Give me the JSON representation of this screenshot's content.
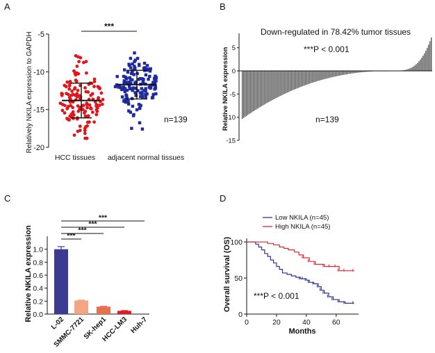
{
  "panels": {
    "A": "A",
    "B": "B",
    "C": "C",
    "D": "D"
  },
  "chart_data": [
    {
      "id": "A",
      "type": "scatter",
      "ylabel": "Relatively NKILA expression to GAPDH",
      "categories": [
        "HCC tissues",
        "adjacent normal tissues"
      ],
      "ylim": [
        -20,
        -5
      ],
      "yticks": [
        -5,
        -10,
        -15,
        -20
      ],
      "means": [
        -13.8,
        -11.7
      ],
      "sd": [
        2.3,
        1.9
      ],
      "n_points": 139,
      "colors": [
        "#e0161b",
        "#1f2a9c"
      ],
      "significance": "***",
      "annotation": "n=139"
    },
    {
      "id": "B",
      "type": "bar",
      "title": "Down-regulated in 78.42% tumor tissues",
      "ylabel": "Relative NKILA expression",
      "ylim": [
        -15,
        7.5
      ],
      "yticks": [
        5,
        0,
        -5,
        -10,
        -15
      ],
      "annotation_p": "***P < 0.001",
      "annotation_n": "n=139",
      "n_bars": 139,
      "percent_down": 78.42,
      "min_value": -10.2,
      "max_value": 7.2
    },
    {
      "id": "C",
      "type": "bar",
      "ylabel": "Relative NKILA expression",
      "categories": [
        "L-02",
        "SMMC-7721",
        "SK-hep1",
        "HCC-LM3",
        "Huh-7"
      ],
      "values": [
        1.0,
        0.21,
        0.115,
        0.05,
        0.0
      ],
      "errors": [
        0.04,
        0.006,
        0.006,
        0.004,
        0.0
      ],
      "colors": [
        "#3b3b91",
        "#f4a582",
        "#e8704e",
        "#e01b22",
        "#c40d17"
      ],
      "ylim": [
        0,
        1.2
      ],
      "yticks": [
        0.0,
        0.2,
        0.4,
        0.6,
        0.8,
        1.0
      ],
      "significance": [
        "***",
        "***",
        "***",
        "***"
      ]
    },
    {
      "id": "D",
      "type": "line",
      "xlabel": "Months",
      "ylabel": "Overall survival (OS)",
      "xlim": [
        0,
        75
      ],
      "ylim": [
        0,
        105
      ],
      "xticks": [
        0,
        20,
        40,
        60
      ],
      "yticks": [
        0,
        50,
        100
      ],
      "annotation": "***P < 0.001",
      "series": [
        {
          "name": "Low NKILA (n=45)",
          "color": "#2e3192",
          "x": [
            0,
            6,
            8,
            10,
            12,
            14,
            16,
            18,
            20,
            22,
            24,
            27,
            30,
            33,
            36,
            38,
            40,
            42,
            45,
            48,
            50,
            52,
            55,
            58,
            62,
            66,
            72
          ],
          "y": [
            100,
            97,
            93,
            89,
            84,
            80,
            75,
            71,
            66,
            62,
            57,
            55,
            53,
            51,
            49,
            49,
            47,
            44,
            42,
            38,
            33,
            29,
            24,
            20,
            17,
            15,
            15
          ]
        },
        {
          "name": "High NKILA (n=45)",
          "color": "#e0282e",
          "x": [
            0,
            10,
            14,
            18,
            22,
            25,
            28,
            32,
            35,
            38,
            42,
            46,
            52,
            56,
            60,
            62,
            66,
            72
          ],
          "y": [
            100,
            100,
            98,
            96,
            93,
            91,
            89,
            86,
            82,
            78,
            73,
            69,
            66,
            66,
            66,
            60,
            60,
            60
          ]
        }
      ]
    }
  ]
}
